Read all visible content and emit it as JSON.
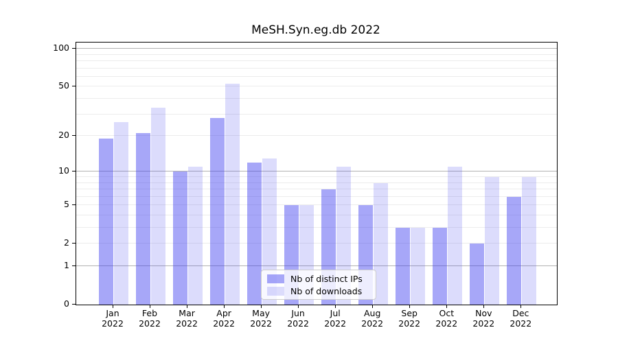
{
  "chart_data": {
    "type": "bar",
    "title": "MeSH.Syn.eg.db 2022",
    "categories": [
      "Jan",
      "Feb",
      "Mar",
      "Apr",
      "May",
      "Jun",
      "Jul",
      "Aug",
      "Sep",
      "Oct",
      "Nov",
      "Dec"
    ],
    "category_year": "2022",
    "series": [
      {
        "name": "Nb of distinct IPs",
        "color": "rgba(60,60,240,0.45)",
        "solid_color": "#aaaaf8",
        "values": [
          19,
          21,
          10,
          28,
          12,
          5,
          7,
          5,
          3,
          3,
          2,
          6
        ]
      },
      {
        "name": "Nb of downloads",
        "color": "rgba(60,60,240,0.18)",
        "solid_color": "#dcdcfa",
        "values": [
          26,
          34,
          11,
          53,
          13,
          5,
          11,
          8,
          3,
          11,
          9,
          9
        ]
      }
    ],
    "xlabel": "",
    "ylabel": "",
    "yticks": [
      100,
      50,
      20,
      10,
      5,
      2,
      1,
      0
    ],
    "ylim": [
      0,
      112
    ],
    "yscale": "log1p",
    "grid": true,
    "gridlines": {
      "major": [
        1,
        10,
        100
      ],
      "minor": [
        2,
        3,
        4,
        5,
        6,
        7,
        8,
        9,
        20,
        30,
        40,
        50,
        60,
        70,
        80,
        90
      ]
    },
    "legend_position": "lower-center"
  }
}
